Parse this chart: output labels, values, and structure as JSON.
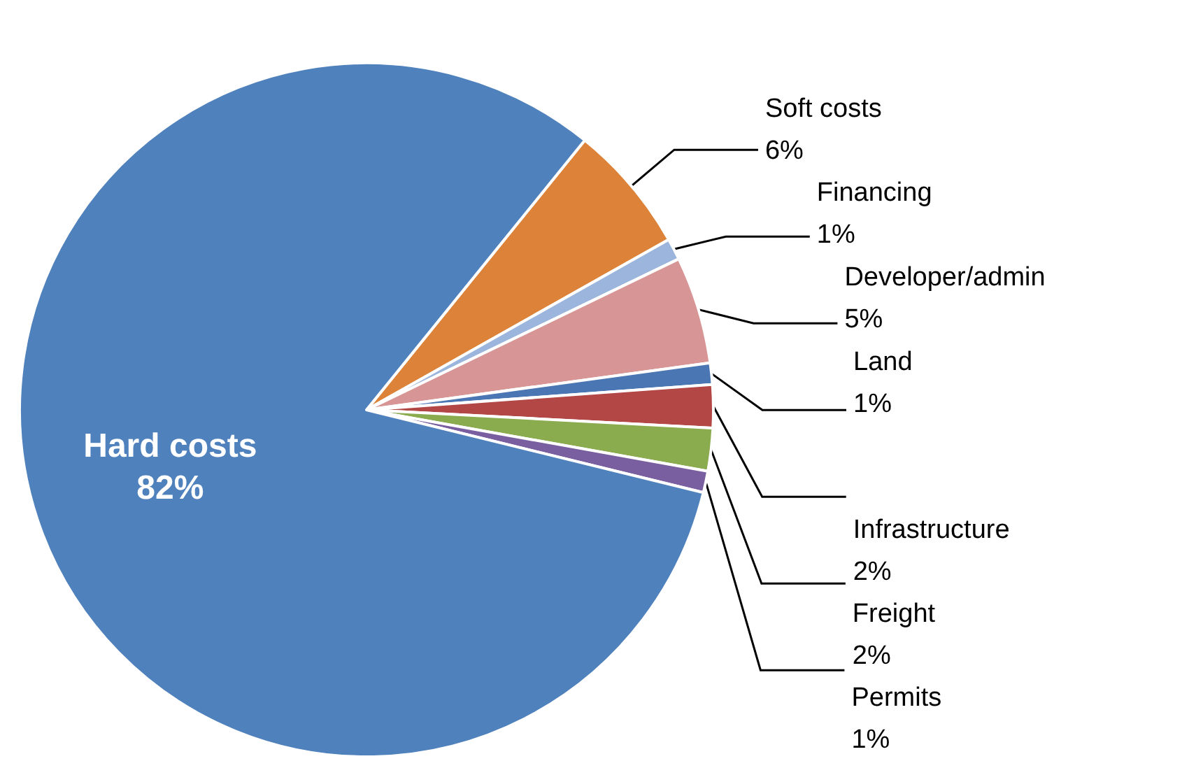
{
  "chart_data": {
    "type": "pie",
    "categories": [
      "Soft costs",
      "Financing",
      "Developer/admin",
      "Land",
      "Infrastructure",
      "Freight",
      "Permits",
      "Hard costs"
    ],
    "values": [
      6,
      1,
      5,
      1,
      2,
      2,
      1,
      82
    ],
    "value_labels": [
      "6%",
      "1%",
      "5%",
      "1%",
      "2%",
      "2%",
      "1%",
      "82%"
    ],
    "colors": [
      "#dd8339",
      "#9bb5dc",
      "#d89595",
      "#4a77b4",
      "#b24745",
      "#8aab4e",
      "#7a5fa0",
      "#4f81bd"
    ],
    "legend": false
  }
}
